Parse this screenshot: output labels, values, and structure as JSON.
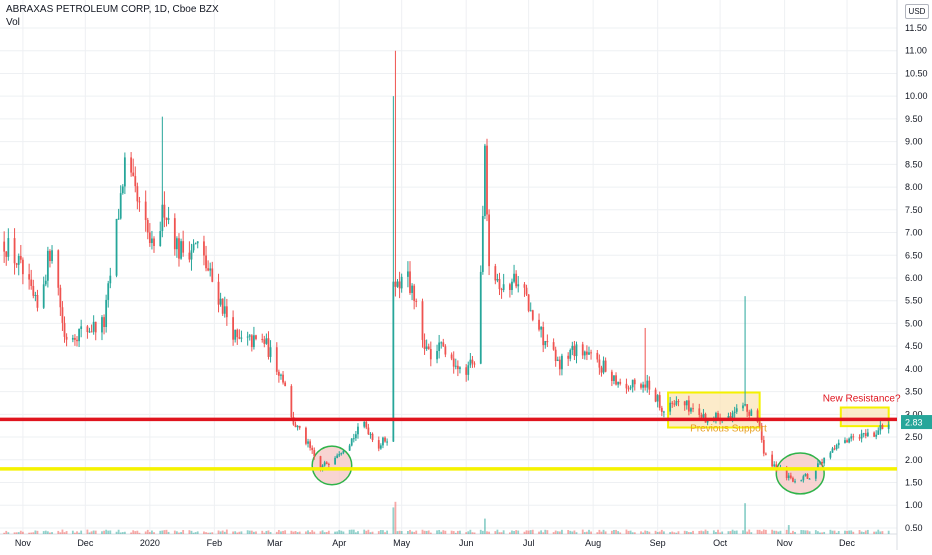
{
  "header": {
    "title": "ABRAXAS PETROLEUM CORP, 1D, Cboe BZX",
    "volume_label": "Vol",
    "currency": "USD"
  },
  "colors": {
    "up": "#26a69a",
    "down": "#ef5350",
    "grid": "#eef0f3",
    "red_line": "#e0141e",
    "yellow_line": "#f5f200",
    "ellipse_fill": "#f6c6c3",
    "ellipse_stroke": "#2fb34a",
    "box_fill": "#fbe3b4",
    "box_stroke": "#f5f200",
    "annotation_text": "#e8a020",
    "new_resistance_text": "#e0141e",
    "last_price_bg": "#26a69a"
  },
  "chart_data": {
    "type": "candlestick",
    "title": "ABRAXAS PETROLEUM CORP, 1D, Cboe BZX",
    "xlabel": "",
    "ylabel": "",
    "currency": "USD",
    "y_scale": "linear",
    "ylim": [
      0.5,
      11.5
    ],
    "y_ticks": [
      0.5,
      1.0,
      1.5,
      2.0,
      2.5,
      3.0,
      3.5,
      4.0,
      4.5,
      5.0,
      5.5,
      6.0,
      6.5,
      7.0,
      7.5,
      8.0,
      8.5,
      9.0,
      9.5,
      10.0,
      10.5,
      11.0,
      11.5
    ],
    "x_ticks": [
      "Nov",
      "Dec",
      "2020",
      "Feb",
      "Mar",
      "Apr",
      "May",
      "Jun",
      "Jul",
      "Aug",
      "Sep",
      "Oct",
      "Nov",
      "Dec"
    ],
    "grid": true,
    "last_price": 2.83,
    "horizontal_lines": [
      {
        "name": "Resistance",
        "y": 2.89,
        "color": "#e0141e"
      },
      {
        "name": "Support",
        "y": 1.8,
        "color": "#f5f200"
      }
    ],
    "annotations": [
      {
        "text": "Previous Support",
        "date": "2020-10-05",
        "y": 2.62
      },
      {
        "text": "New Resistance?",
        "date": "2020-12-08",
        "y": 3.28
      }
    ],
    "highlights": [
      {
        "shape": "ellipse",
        "start": "2020-03-19",
        "end": "2020-04-07",
        "ylow": 1.45,
        "yhigh": 2.3
      },
      {
        "shape": "box",
        "start": "2020-09-06",
        "end": "2020-10-20",
        "ylow": 2.71,
        "yhigh": 3.48
      },
      {
        "shape": "ellipse",
        "start": "2020-10-28",
        "end": "2020-11-20",
        "ylow": 1.25,
        "yhigh": 2.15
      },
      {
        "shape": "box",
        "start": "2020-11-28",
        "end": "2020-12-21",
        "ylow": 2.74,
        "yhigh": 3.15
      }
    ],
    "anchors": [
      [
        "2019-10-23",
        6.8
      ],
      [
        "2019-10-30",
        6.3
      ],
      [
        "2019-11-08",
        5.3
      ],
      [
        "2019-11-15",
        6.8
      ],
      [
        "2019-11-21",
        4.7
      ],
      [
        "2019-12-10",
        5.0
      ],
      [
        "2019-12-20",
        8.5
      ],
      [
        "2019-12-27",
        7.5
      ],
      [
        "2020-01-03",
        6.5
      ],
      [
        "2020-01-08",
        7.6
      ],
      [
        "2020-01-15",
        6.6
      ],
      [
        "2020-01-24",
        6.7
      ],
      [
        "2020-02-03",
        5.6
      ],
      [
        "2020-02-12",
        4.6
      ],
      [
        "2020-02-25",
        4.6
      ],
      [
        "2020-03-06",
        3.7
      ],
      [
        "2020-03-09",
        2.9
      ],
      [
        "2020-03-16",
        2.4
      ],
      [
        "2020-03-23",
        1.8
      ],
      [
        "2020-04-01",
        2.2
      ],
      [
        "2020-04-06",
        2.4
      ],
      [
        "2020-04-13",
        2.8
      ],
      [
        "2020-04-20",
        2.3
      ],
      [
        "2020-04-24",
        2.5
      ],
      [
        "2020-04-27",
        5.8
      ],
      [
        "2020-05-04",
        6.0
      ],
      [
        "2020-05-15",
        4.1
      ],
      [
        "2020-05-20",
        4.5
      ],
      [
        "2020-05-29",
        3.9
      ],
      [
        "2020-06-05",
        4.2
      ],
      [
        "2020-06-08",
        6.2
      ],
      [
        "2020-06-10",
        8.9
      ],
      [
        "2020-06-12",
        6.5
      ],
      [
        "2020-06-19",
        5.7
      ],
      [
        "2020-06-26",
        6.1
      ],
      [
        "2020-07-02",
        5.2
      ],
      [
        "2020-07-15",
        4.1
      ],
      [
        "2020-07-24",
        4.5
      ],
      [
        "2020-08-04",
        4.1
      ],
      [
        "2020-08-17",
        3.6
      ],
      [
        "2020-08-27",
        3.7
      ],
      [
        "2020-09-04",
        3.1
      ],
      [
        "2020-09-11",
        3.3
      ],
      [
        "2020-09-25",
        2.9
      ],
      [
        "2020-10-13",
        3.1
      ],
      [
        "2020-10-20",
        2.8
      ],
      [
        "2020-10-22",
        2.1
      ],
      [
        "2020-10-29",
        1.8
      ],
      [
        "2020-11-04",
        1.55
      ],
      [
        "2020-11-13",
        1.65
      ],
      [
        "2020-11-20",
        2.0
      ],
      [
        "2020-11-27",
        2.3
      ],
      [
        "2020-12-07",
        2.5
      ],
      [
        "2020-12-14",
        2.55
      ],
      [
        "2020-12-21",
        2.83
      ]
    ],
    "spikes": [
      {
        "date": "2020-04-27",
        "high": 10.0
      },
      {
        "date": "2020-04-28",
        "high": 11.0
      },
      {
        "date": "2020-06-10",
        "high": 8.95
      },
      {
        "date": "2020-01-07",
        "high": 9.55
      },
      {
        "date": "2020-08-26",
        "high": 4.9
      },
      {
        "date": "2020-10-13",
        "high": 5.6
      }
    ],
    "volume": {
      "label": "Vol",
      "baseline": 0.4,
      "spikes": [
        {
          "date": "2020-04-27",
          "value": 95
        },
        {
          "date": "2020-04-28",
          "value": 115
        },
        {
          "date": "2020-06-10",
          "value": 55
        },
        {
          "date": "2020-10-13",
          "value": 110
        },
        {
          "date": "2020-11-03",
          "value": 32
        }
      ]
    }
  }
}
